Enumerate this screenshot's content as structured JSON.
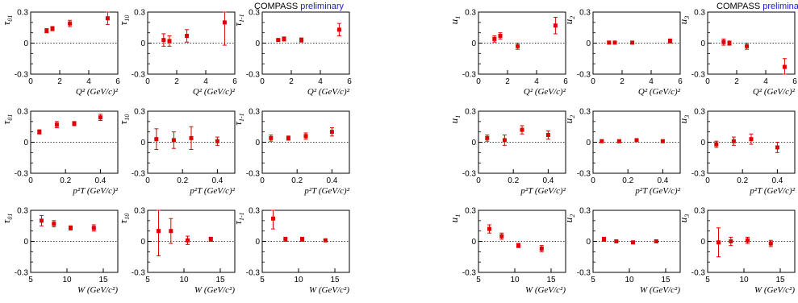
{
  "header": {
    "left": {
      "experiment": "COMPASS",
      "status": "preliminary"
    },
    "right": {
      "experiment": "COMPASS",
      "status": "preliminary"
    }
  },
  "colors": {
    "marker": "#e00000",
    "axis": "#000000",
    "zero_line": "#000000",
    "status_text": "#1a1acc"
  },
  "chart_data": [
    {
      "type": "scatter",
      "ylabel": "τ01",
      "xlabel": "Q² (GeV/c)²",
      "xlim": [
        0,
        6
      ],
      "ylim": [
        -0.3,
        0.3
      ],
      "xticks": [
        "0",
        "2",
        "4",
        "6"
      ],
      "yticks": [
        "-0.3",
        "0",
        "0.3"
      ],
      "zero_line": true,
      "points": [
        {
          "x": 1.1,
          "y": 0.12,
          "err": 0.02
        },
        {
          "x": 1.5,
          "y": 0.14,
          "err": 0.02
        },
        {
          "x": 2.7,
          "y": 0.19,
          "err": 0.03
        },
        {
          "x": 5.3,
          "y": 0.24,
          "err": 0.06
        }
      ]
    },
    {
      "type": "scatter",
      "ylabel": "τ10",
      "xlabel": "Q² (GeV/c)²",
      "xlim": [
        0,
        6
      ],
      "ylim": [
        -0.3,
        0.3
      ],
      "xticks": [
        "0",
        "2",
        "4",
        "6"
      ],
      "yticks": [
        "-0.3",
        "0",
        "0.3"
      ],
      "zero_line": true,
      "points": [
        {
          "x": 1.1,
          "y": 0.03,
          "err": 0.06
        },
        {
          "x": 1.5,
          "y": 0.02,
          "err": 0.05
        },
        {
          "x": 2.7,
          "y": 0.07,
          "err": 0.06
        },
        {
          "x": 5.3,
          "y": 0.2,
          "err": 0.22
        }
      ]
    },
    {
      "type": "scatter",
      "ylabel": "τ1-1",
      "xlabel": "Q² (GeV/c)²",
      "xlim": [
        0,
        6
      ],
      "ylim": [
        -0.3,
        0.3
      ],
      "xticks": [
        "0",
        "2",
        "4",
        "6"
      ],
      "yticks": [
        "-0.3",
        "0",
        "0.3"
      ],
      "zero_line": true,
      "points": [
        {
          "x": 1.1,
          "y": 0.03,
          "err": 0.01
        },
        {
          "x": 1.5,
          "y": 0.04,
          "err": 0.02
        },
        {
          "x": 2.7,
          "y": 0.03,
          "err": 0.02
        },
        {
          "x": 5.3,
          "y": 0.13,
          "err": 0.06
        }
      ]
    },
    {
      "type": "scatter",
      "ylabel": "u1",
      "xlabel": "Q² (GeV/c)²",
      "xlim": [
        0,
        6
      ],
      "ylim": [
        -0.3,
        0.3
      ],
      "xticks": [
        "0",
        "2",
        "4",
        "6"
      ],
      "yticks": [
        "-0.3",
        "0",
        "0.3"
      ],
      "zero_line": true,
      "points": [
        {
          "x": 1.1,
          "y": 0.04,
          "err": 0.03
        },
        {
          "x": 1.5,
          "y": 0.07,
          "err": 0.03
        },
        {
          "x": 2.7,
          "y": -0.03,
          "err": 0.03
        },
        {
          "x": 5.3,
          "y": 0.17,
          "err": 0.08
        }
      ]
    },
    {
      "type": "scatter",
      "ylabel": "u2",
      "xlabel": "Q² (GeV/c)²",
      "xlim": [
        0,
        6
      ],
      "ylim": [
        -0.3,
        0.3
      ],
      "xticks": [
        "0",
        "2",
        "4",
        "6"
      ],
      "yticks": [
        "-0.3",
        "0",
        "0.3"
      ],
      "zero_line": true,
      "points": [
        {
          "x": 1.1,
          "y": 0.005,
          "err": 0.01
        },
        {
          "x": 1.5,
          "y": 0.005,
          "err": 0.01
        },
        {
          "x": 2.7,
          "y": 0.005,
          "err": 0.01
        },
        {
          "x": 5.3,
          "y": 0.02,
          "err": 0.02
        }
      ]
    },
    {
      "type": "scatter",
      "ylabel": "u3",
      "xlabel": "Q² (GeV/c)²",
      "xlim": [
        0,
        6
      ],
      "ylim": [
        -0.3,
        0.3
      ],
      "xticks": [
        "0",
        "2",
        "4",
        "6"
      ],
      "yticks": [
        "-0.3",
        "0",
        "0.3"
      ],
      "zero_line": true,
      "points": [
        {
          "x": 1.1,
          "y": 0.01,
          "err": 0.03
        },
        {
          "x": 1.5,
          "y": 0.0,
          "err": 0.02
        },
        {
          "x": 2.7,
          "y": -0.03,
          "err": 0.03
        },
        {
          "x": 5.3,
          "y": -0.23,
          "err": 0.08
        }
      ]
    },
    {
      "type": "scatter",
      "ylabel": "τ01",
      "xlabel": "p²T (GeV/c)²",
      "xlim": [
        0,
        0.5
      ],
      "ylim": [
        -0.3,
        0.3
      ],
      "xticks": [
        "0",
        "0.2",
        "0.4"
      ],
      "yticks": [
        "-0.3",
        "0",
        "0.3"
      ],
      "zero_line": true,
      "points": [
        {
          "x": 0.05,
          "y": 0.1,
          "err": 0.02
        },
        {
          "x": 0.15,
          "y": 0.17,
          "err": 0.03
        },
        {
          "x": 0.25,
          "y": 0.18,
          "err": 0.02
        },
        {
          "x": 0.4,
          "y": 0.24,
          "err": 0.03
        }
      ]
    },
    {
      "type": "scatter",
      "ylabel": "τ10",
      "xlabel": "p²T (GeV/c)²",
      "xlim": [
        0,
        0.5
      ],
      "ylim": [
        -0.3,
        0.3
      ],
      "xticks": [
        "0",
        "0.2",
        "0.4"
      ],
      "yticks": [
        "-0.3",
        "0",
        "0.3"
      ],
      "zero_line": true,
      "points": [
        {
          "x": 0.05,
          "y": 0.03,
          "err": 0.1
        },
        {
          "x": 0.15,
          "y": 0.02,
          "err": 0.08
        },
        {
          "x": 0.25,
          "y": 0.04,
          "err": 0.11
        },
        {
          "x": 0.4,
          "y": 0.01,
          "err": 0.04
        }
      ]
    },
    {
      "type": "scatter",
      "ylabel": "τ1-1",
      "xlabel": "p²T (GeV/c)²",
      "xlim": [
        0,
        0.5
      ],
      "ylim": [
        -0.3,
        0.3
      ],
      "xticks": [
        "0",
        "0.2",
        "0.4"
      ],
      "yticks": [
        "-0.3",
        "0",
        "0.3"
      ],
      "zero_line": true,
      "points": [
        {
          "x": 0.05,
          "y": 0.04,
          "err": 0.03
        },
        {
          "x": 0.15,
          "y": 0.04,
          "err": 0.02
        },
        {
          "x": 0.25,
          "y": 0.06,
          "err": 0.03
        },
        {
          "x": 0.4,
          "y": 0.1,
          "err": 0.04
        }
      ]
    },
    {
      "type": "scatter",
      "ylabel": "u1",
      "xlabel": "p²T (GeV/c)²",
      "xlim": [
        0,
        0.5
      ],
      "ylim": [
        -0.3,
        0.3
      ],
      "xticks": [
        "0",
        "0.2",
        "0.4"
      ],
      "yticks": [
        "-0.3",
        "0",
        "0.3"
      ],
      "zero_line": true,
      "points": [
        {
          "x": 0.05,
          "y": 0.04,
          "err": 0.03
        },
        {
          "x": 0.15,
          "y": 0.02,
          "err": 0.05
        },
        {
          "x": 0.25,
          "y": 0.12,
          "err": 0.04
        },
        {
          "x": 0.4,
          "y": 0.07,
          "err": 0.04
        }
      ]
    },
    {
      "type": "scatter",
      "ylabel": "u2",
      "xlabel": "p²T (GeV/c)²",
      "xlim": [
        0,
        0.5
      ],
      "ylim": [
        -0.3,
        0.3
      ],
      "xticks": [
        "0",
        "0.2",
        "0.4"
      ],
      "yticks": [
        "-0.3",
        "0",
        "0.3"
      ],
      "zero_line": true,
      "points": [
        {
          "x": 0.05,
          "y": 0.01,
          "err": 0.01
        },
        {
          "x": 0.15,
          "y": 0.01,
          "err": 0.01
        },
        {
          "x": 0.25,
          "y": 0.02,
          "err": 0.01
        },
        {
          "x": 0.4,
          "y": 0.01,
          "err": 0.01
        }
      ]
    },
    {
      "type": "scatter",
      "ylabel": "u3",
      "xlabel": "p²T (GeV/c)²",
      "xlim": [
        0,
        0.5
      ],
      "ylim": [
        -0.3,
        0.3
      ],
      "xticks": [
        "0",
        "0.2",
        "0.4"
      ],
      "yticks": [
        "-0.3",
        "0",
        "0.3"
      ],
      "zero_line": true,
      "points": [
        {
          "x": 0.05,
          "y": -0.02,
          "err": 0.03
        },
        {
          "x": 0.15,
          "y": 0.01,
          "err": 0.04
        },
        {
          "x": 0.25,
          "y": 0.03,
          "err": 0.05
        },
        {
          "x": 0.4,
          "y": -0.05,
          "err": 0.05
        }
      ]
    },
    {
      "type": "scatter",
      "ylabel": "τ01",
      "xlabel": "W (GeV/c²)",
      "xlim": [
        5,
        17
      ],
      "ylim": [
        -0.3,
        0.3
      ],
      "xticks": [
        "5",
        "10",
        "15"
      ],
      "yticks": [
        "-0.3",
        "0",
        "0.3"
      ],
      "zero_line": true,
      "points": [
        {
          "x": 6.5,
          "y": 0.2,
          "err": 0.05
        },
        {
          "x": 8.2,
          "y": 0.17,
          "err": 0.03
        },
        {
          "x": 10.5,
          "y": 0.13,
          "err": 0.02
        },
        {
          "x": 13.7,
          "y": 0.13,
          "err": 0.03
        }
      ]
    },
    {
      "type": "scatter",
      "ylabel": "τ10",
      "xlabel": "W (GeV/c²)",
      "xlim": [
        5,
        17
      ],
      "ylim": [
        -0.3,
        0.3
      ],
      "xticks": [
        "5",
        "10",
        "15"
      ],
      "yticks": [
        "-0.3",
        "0",
        "0.3"
      ],
      "zero_line": true,
      "points": [
        {
          "x": 6.5,
          "y": 0.1,
          "err": 0.24
        },
        {
          "x": 8.2,
          "y": 0.1,
          "err": 0.12
        },
        {
          "x": 10.5,
          "y": 0.01,
          "err": 0.04
        },
        {
          "x": 13.7,
          "y": 0.02,
          "err": 0.02
        }
      ]
    },
    {
      "type": "scatter",
      "ylabel": "τ1-1",
      "xlabel": "W (GeV/c²)",
      "xlim": [
        5,
        17
      ],
      "ylim": [
        -0.3,
        0.3
      ],
      "xticks": [
        "5",
        "10",
        "15"
      ],
      "yticks": [
        "-0.3",
        "0",
        "0.3"
      ],
      "zero_line": true,
      "points": [
        {
          "x": 6.5,
          "y": 0.22,
          "err": 0.1
        },
        {
          "x": 8.2,
          "y": 0.02,
          "err": 0.02
        },
        {
          "x": 10.5,
          "y": 0.02,
          "err": 0.02
        },
        {
          "x": 13.7,
          "y": 0.01,
          "err": 0.01
        }
      ]
    },
    {
      "type": "scatter",
      "ylabel": "u1",
      "xlabel": "W (GeV/c²)",
      "xlim": [
        5,
        17
      ],
      "ylim": [
        -0.3,
        0.3
      ],
      "xticks": [
        "5",
        "10",
        "15"
      ],
      "yticks": [
        "-0.3",
        "0",
        "0.3"
      ],
      "zero_line": true,
      "points": [
        {
          "x": 6.5,
          "y": 0.12,
          "err": 0.04
        },
        {
          "x": 8.2,
          "y": 0.05,
          "err": 0.03
        },
        {
          "x": 10.5,
          "y": -0.04,
          "err": 0.02
        },
        {
          "x": 13.7,
          "y": -0.07,
          "err": 0.03
        }
      ]
    },
    {
      "type": "scatter",
      "ylabel": "u2",
      "xlabel": "W (GeV/c²)",
      "xlim": [
        5,
        17
      ],
      "ylim": [
        -0.3,
        0.3
      ],
      "xticks": [
        "5",
        "10",
        "15"
      ],
      "yticks": [
        "-0.3",
        "0",
        "0.3"
      ],
      "zero_line": true,
      "points": [
        {
          "x": 6.5,
          "y": 0.02,
          "err": 0.02
        },
        {
          "x": 8.2,
          "y": 0.0,
          "err": 0.01
        },
        {
          "x": 10.5,
          "y": -0.01,
          "err": 0.01
        },
        {
          "x": 13.7,
          "y": 0.0,
          "err": 0.01
        }
      ]
    },
    {
      "type": "scatter",
      "ylabel": "u3",
      "xlabel": "W (GeV/c²)",
      "xlim": [
        5,
        17
      ],
      "ylim": [
        -0.3,
        0.3
      ],
      "xticks": [
        "5",
        "10",
        "15"
      ],
      "yticks": [
        "-0.3",
        "0",
        "0.3"
      ],
      "zero_line": true,
      "points": [
        {
          "x": 6.5,
          "y": -0.01,
          "err": 0.14
        },
        {
          "x": 8.2,
          "y": 0.0,
          "err": 0.04
        },
        {
          "x": 10.5,
          "y": 0.01,
          "err": 0.03
        },
        {
          "x": 13.7,
          "y": -0.02,
          "err": 0.03
        }
      ]
    }
  ]
}
